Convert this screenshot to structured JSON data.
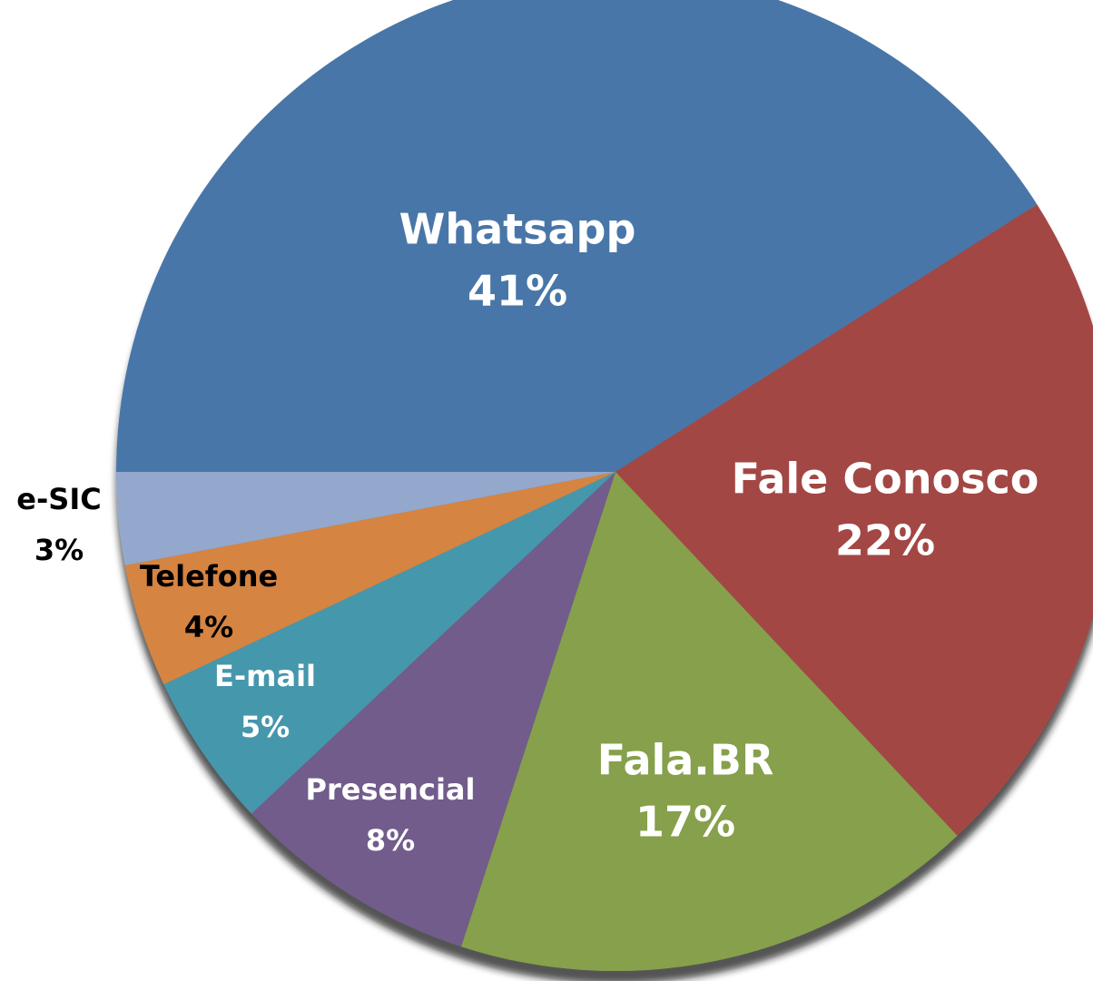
{
  "chart_data": {
    "type": "pie",
    "categories": [
      "Whatsapp",
      "Fale Conosco",
      "Fala.BR",
      "Presencial",
      "E-mail",
      "Telefone",
      "e-SIC"
    ],
    "values": [
      41,
      22,
      17,
      8,
      5,
      4,
      3
    ],
    "value_labels": [
      "41%",
      "22%",
      "17%",
      "8%",
      "5%",
      "4%",
      "3%"
    ],
    "colors": [
      "#4a76a8",
      "#a34644",
      "#86a04c",
      "#715b8c",
      "#4597ac",
      "#d58442",
      "#93a8cc"
    ],
    "label_colors": [
      "#ffffff",
      "#ffffff",
      "#ffffff",
      "#ffffff",
      "#ffffff",
      "#000000",
      "#000000"
    ]
  }
}
